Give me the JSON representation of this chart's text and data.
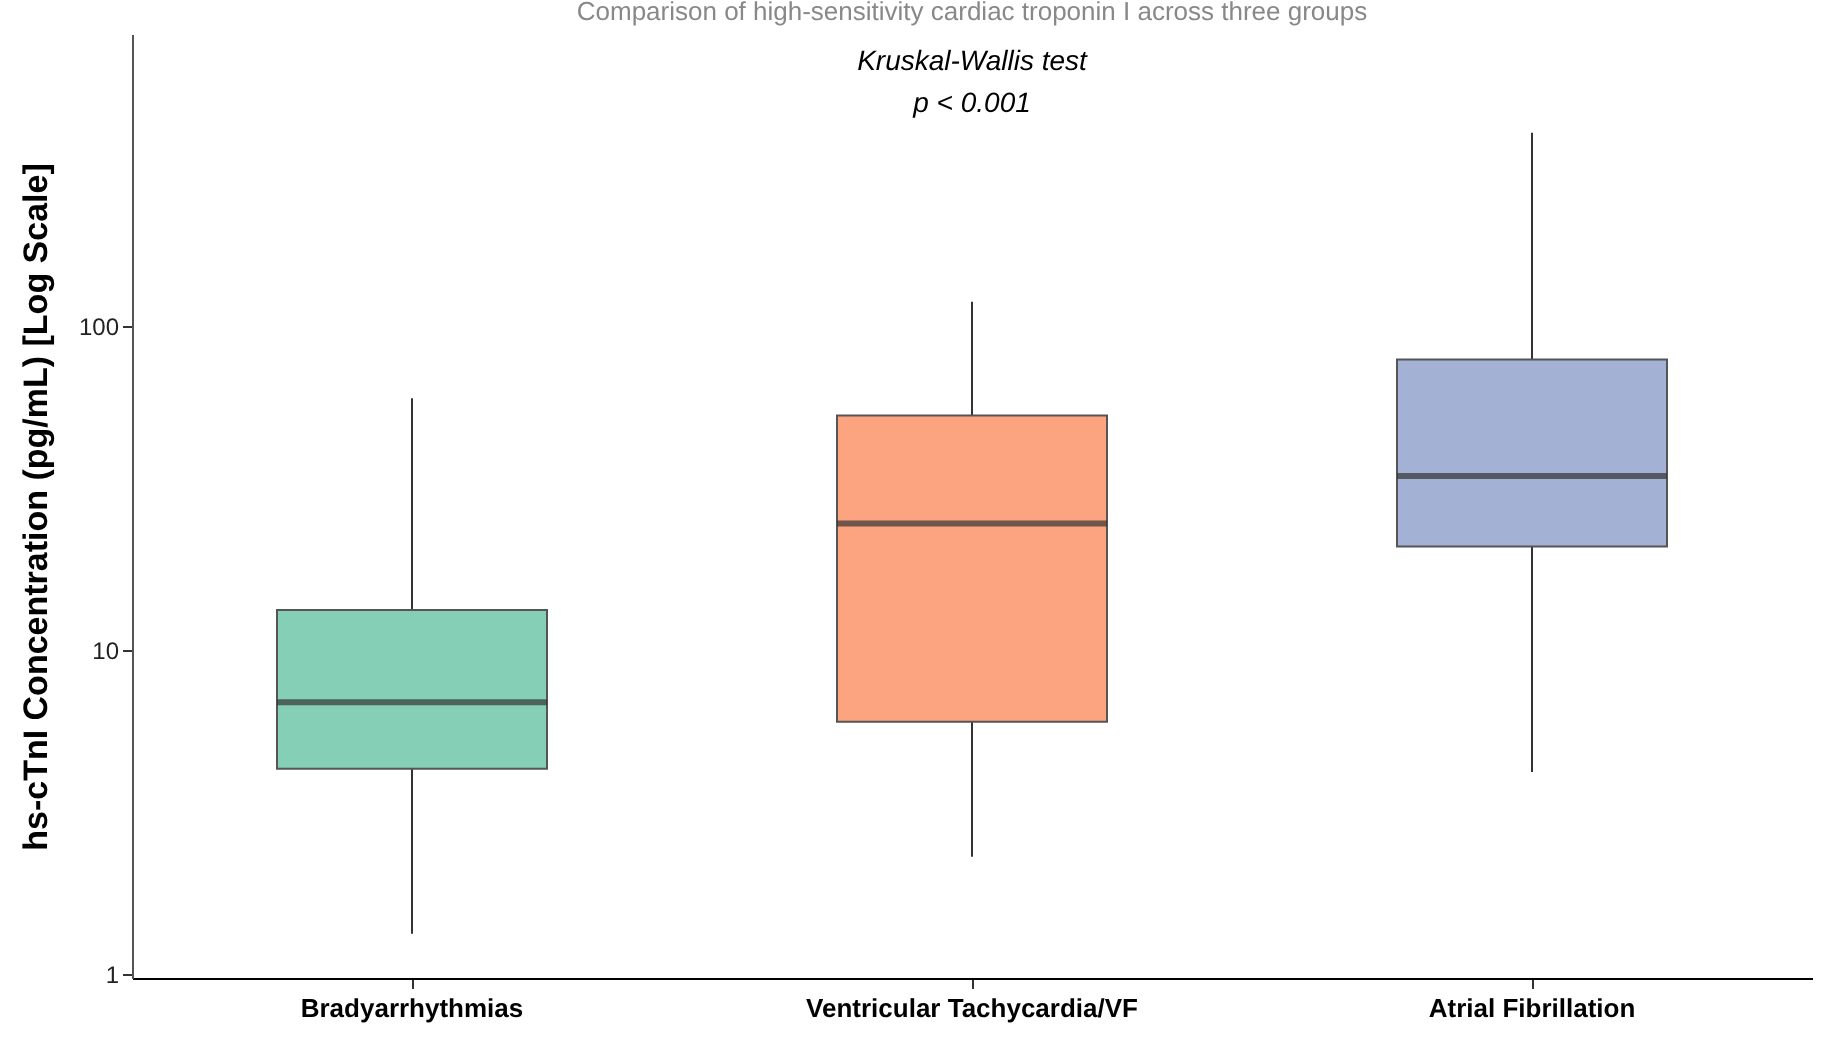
{
  "chart_data": {
    "type": "box",
    "title": "Comparison of high-sensitivity cardiac troponin I across three groups",
    "ylabel": "hs-cTnI Concentration (pg/mL) [Log Scale]",
    "categories": [
      "Bradyarrhythmias",
      "Ventricular Tachycardia/VF",
      "Atrial Fibrillation"
    ],
    "colors": [
      "#85cfb7",
      "#fca480",
      "#a3b1d5"
    ],
    "boxes": [
      {
        "low": 1.33,
        "q1": 4.3,
        "median": 6.9,
        "q3": 13.3,
        "high": 60
      },
      {
        "low": 2.3,
        "q1": 6.0,
        "median": 24.6,
        "q3": 53,
        "high": 119
      },
      {
        "low": 4.2,
        "q1": 20.9,
        "median": 34.5,
        "q3": 79,
        "high": 396
      }
    ],
    "log": true,
    "ylim": [
      0.97,
      800
    ],
    "yticks": [
      1,
      10,
      100
    ],
    "grid": false,
    "annotations": [
      "Kruskal-Wallis test",
      "p < 0.001"
    ]
  }
}
